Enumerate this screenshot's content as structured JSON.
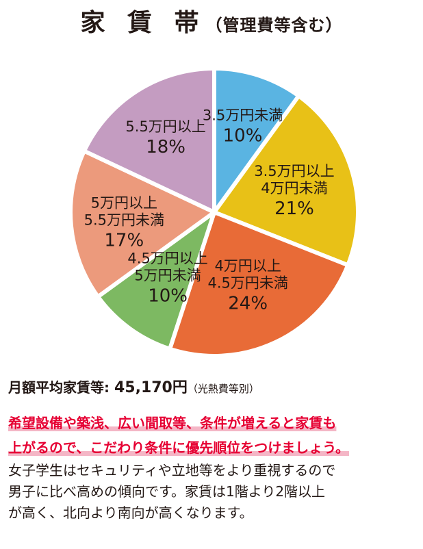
{
  "header": {
    "title": "家 賃 帯",
    "subtitle": "（管理費等含む）"
  },
  "chart_data": {
    "type": "pie",
    "title": "家 賃 帯",
    "subtitle": "（管理費等含む）",
    "categories": [
      "3.5万円未満",
      "3.5万円以上 4万円未満",
      "4万円以上 4.5万円未満",
      "4.5万円以上 5万円未満",
      "5万円以上 5.5万円未満",
      "5.5万円以上"
    ],
    "values": [
      10,
      21,
      24,
      10,
      17,
      18
    ],
    "unit": "%",
    "slices": [
      {
        "lines": [
          "3.5万円未満"
        ],
        "pct_label": "10%",
        "value": 10,
        "color": "#5ab4e2"
      },
      {
        "lines": [
          "3.5万円以上",
          "4万円未満"
        ],
        "pct_label": "21%",
        "value": 21,
        "color": "#e8c117"
      },
      {
        "lines": [
          "4万円以上",
          "4.5万円未満"
        ],
        "pct_label": "24%",
        "value": 24,
        "color": "#e86b37"
      },
      {
        "lines": [
          "4.5万円以上",
          "5万円未満"
        ],
        "pct_label": "10%",
        "value": 10,
        "color": "#7db962"
      },
      {
        "lines": [
          "5万円以上",
          "5.5万円未満"
        ],
        "pct_label": "17%",
        "value": 17,
        "color": "#ec9a7c"
      },
      {
        "lines": [
          "5.5万円以上"
        ],
        "pct_label": "18%",
        "value": 18,
        "color": "#c49cc1"
      }
    ]
  },
  "summary": {
    "label": "月額平均家賃等: ",
    "value": "45,170円",
    "note": "（光熱費等別）"
  },
  "notes": {
    "highlight_1": "希望設備や築浅、広い間取等、条件が増えると家賃も",
    "highlight_2": "上がるので、こだわり条件に優先順位をつけましょう。",
    "body_1": "女子学生はセキュリティや立地等をより重視するので",
    "body_2": "男子に比べ高めの傾向です。家賃は1階より2階以上",
    "body_3": "が高く、北向より南向が高くなります。"
  }
}
